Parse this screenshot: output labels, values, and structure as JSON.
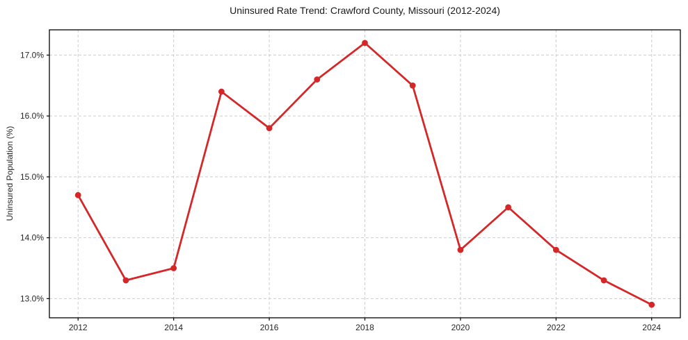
{
  "figure": {
    "title": "Uninsured Rate Trend: Crawford County, Missouri (2012-2024)",
    "y_axis_label": "Uninsured Population (%)",
    "background": "#ffffff"
  },
  "chart_data": {
    "type": "line",
    "title": "Uninsured Rate Trend: Crawford County, Missouri (2012-2024)",
    "xlabel": "",
    "ylabel": "Uninsured Population (%)",
    "x": [
      2012,
      2013,
      2014,
      2015,
      2016,
      2017,
      2018,
      2019,
      2020,
      2021,
      2022,
      2023,
      2024
    ],
    "values": [
      14.7,
      13.3,
      13.5,
      16.4,
      15.8,
      16.6,
      17.2,
      16.5,
      13.8,
      14.5,
      13.8,
      13.3,
      12.9
    ],
    "xlim": [
      2011.4,
      2024.6
    ],
    "ylim": [
      12.685,
      17.415
    ],
    "xticks": {
      "values": [
        2012,
        2014,
        2016,
        2018,
        2020,
        2022,
        2024
      ],
      "labels": [
        "2012",
        "2014",
        "2016",
        "2018",
        "2020",
        "2022",
        "2024"
      ]
    },
    "yticks": {
      "values": [
        13.0,
        14.0,
        15.0,
        16.0,
        17.0
      ],
      "labels": [
        "13.0%",
        "14.0%",
        "15.0%",
        "16.0%",
        "17.0%"
      ]
    },
    "grid": true,
    "grid_style": "dashed",
    "legend": false,
    "marker": "circle",
    "line_color": "#d62728",
    "grid_color": "#cccccc",
    "spine_color": "#000000",
    "tick_label_color": "#262626"
  }
}
